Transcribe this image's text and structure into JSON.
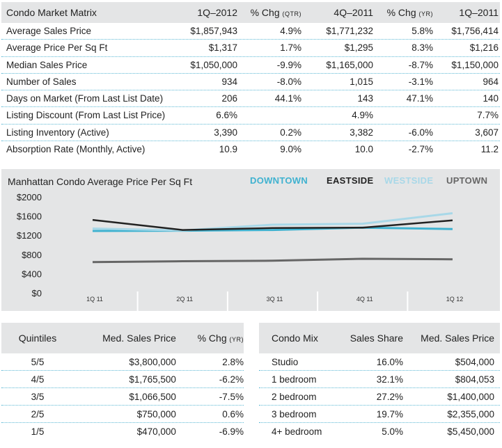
{
  "matrix": {
    "headers": [
      "Condo  Market Matrix",
      "1Q–2012",
      "% Chg ",
      "(QTR)",
      "4Q–2011",
      "% Chg ",
      "(YR)",
      "1Q–2011"
    ],
    "rows": [
      [
        "Average Sales Price",
        "$1,857,943",
        "4.9%",
        "$1,771,232",
        "5.8%",
        "$1,756,414"
      ],
      [
        "Average Price Per Sq Ft",
        "$1,317",
        "1.7%",
        "$1,295",
        "8.3%",
        "$1,216"
      ],
      [
        "Median Sales Price",
        "$1,050,000",
        "-9.9%",
        "$1,165,000",
        "-8.7%",
        "$1,150,000"
      ],
      [
        "Number of Sales",
        "934",
        "-8.0%",
        "1,015",
        "-3.1%",
        "964"
      ],
      [
        "Days on Market (From Last List Date)",
        "206",
        "44.1%",
        "143",
        "47.1%",
        "140"
      ],
      [
        "Listing Discount (From Last List Price)",
        "6.6%",
        "",
        "4.9%",
        "",
        "7.7%"
      ],
      [
        "Listing Inventory (Active)",
        "3,390",
        "0.2%",
        "3,382",
        "-6.0%",
        "3,607"
      ],
      [
        "Absorption Rate (Monthly, Active)",
        "10.9",
        "9.0%",
        "10.0",
        "-2.7%",
        "11.2"
      ]
    ]
  },
  "chart_data": {
    "type": "line",
    "title": "Manhattan Condo  Average Price Per Sq Ft",
    "x": [
      "1Q 11",
      "2Q 11",
      "3Q 11",
      "4Q 11",
      "1Q 12"
    ],
    "y_ticks": [
      "$2000",
      "$1600",
      "$1200",
      "$800",
      "$400",
      "$0"
    ],
    "ylim": [
      0,
      2000
    ],
    "grid": false,
    "legend_position": "top-right",
    "series": [
      {
        "name": "DOWNTOWN",
        "color": "#3fb2d0",
        "values": [
          1290,
          1295,
          1310,
          1360,
          1330
        ]
      },
      {
        "name": "EASTSIDE",
        "color": "#222222",
        "values": [
          1520,
          1310,
          1350,
          1360,
          1510
        ]
      },
      {
        "name": "WESTSIDE",
        "color": "#a8d8e8",
        "values": [
          1340,
          1300,
          1420,
          1440,
          1660
        ]
      },
      {
        "name": "UPTOWN",
        "color": "#666666",
        "values": [
          640,
          660,
          670,
          710,
          700
        ]
      }
    ]
  },
  "quintiles": {
    "headers": [
      "Quintiles",
      "Med. Sales Price",
      "% Chg ",
      "(YR)"
    ],
    "rows": [
      [
        "5/5",
        "$3,800,000",
        "2.8%"
      ],
      [
        "4/5",
        "$1,765,500",
        "-6.2%"
      ],
      [
        "3/5",
        "$1,066,500",
        "-7.5%"
      ],
      [
        "2/5",
        "$750,000",
        "0.6%"
      ],
      [
        "1/5",
        "$470,000",
        "-6.9%"
      ]
    ]
  },
  "mix": {
    "headers": [
      "Condo Mix",
      "Sales Share",
      "Med. Sales Price"
    ],
    "rows": [
      [
        "Studio",
        "16.0%",
        "$504,000"
      ],
      [
        "1 bedroom",
        "32.1%",
        "$804,053"
      ],
      [
        "2 bedroom",
        "27.2%",
        "$1,400,000"
      ],
      [
        "3 bedroom",
        "19.7%",
        "$2,355,000"
      ],
      [
        "4+ bedroom",
        "5.0%",
        "$5,450,000"
      ]
    ]
  }
}
